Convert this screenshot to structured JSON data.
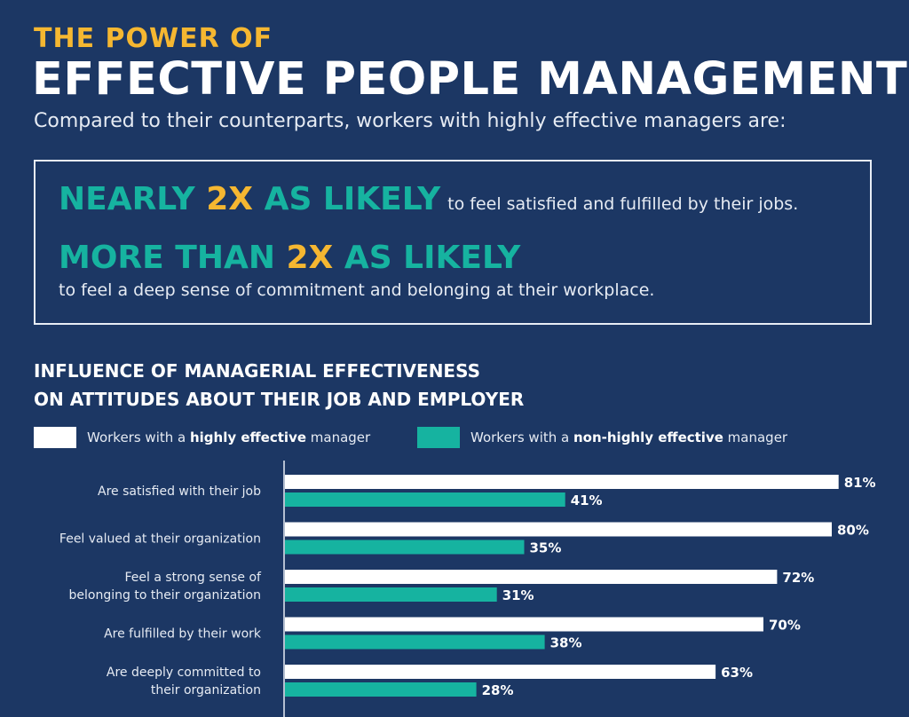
{
  "header": {
    "kicker": "THE POWER OF",
    "headline": "EFFECTIVE PEOPLE MANAGEMENT",
    "subtitle": "Compared to their counterparts, workers with highly effective managers are:"
  },
  "callout": {
    "stat1": {
      "pre": "NEARLY ",
      "highlight": "2X",
      "post": " AS LIKELY",
      "detail": "to feel satisfied and fulfilled by their jobs."
    },
    "stat2": {
      "pre": "MORE THAN ",
      "highlight": "2X",
      "post": " AS LIKELY",
      "detail": "to feel a deep sense of commitment and belonging at their workplace."
    }
  },
  "legend": {
    "item1": {
      "pre": "Workers with a ",
      "bold": "highly effective",
      "post": " manager",
      "color": "#ffffff"
    },
    "item2": {
      "pre": "Workers with a ",
      "bold": "non-highly effective",
      "post": " manager",
      "color": "#16b3a0"
    }
  },
  "chart_data": {
    "type": "bar",
    "orientation": "horizontal",
    "title": "INFLUENCE OF MANAGERIAL EFFECTIVENESS\nON ATTITUDES ABOUT THEIR JOB AND EMPLOYER",
    "categories": [
      [
        "Are satisfied with their job"
      ],
      [
        "Feel valued at their organization"
      ],
      [
        "Feel a strong sense of",
        "belonging to their organization"
      ],
      [
        "Are fulfilled by their work"
      ],
      [
        "Are deeply committed to",
        "their organization"
      ]
    ],
    "series": [
      {
        "name": "Workers with a highly effective manager",
        "values": [
          81,
          80,
          72,
          70,
          63
        ],
        "color": "#ffffff"
      },
      {
        "name": "Workers with a non-highly effective manager",
        "values": [
          41,
          35,
          31,
          38,
          28
        ],
        "color": "#16b3a0"
      }
    ],
    "value_suffix": "%",
    "xlim": [
      0,
      100
    ],
    "grid": false,
    "legend_position": "top"
  }
}
